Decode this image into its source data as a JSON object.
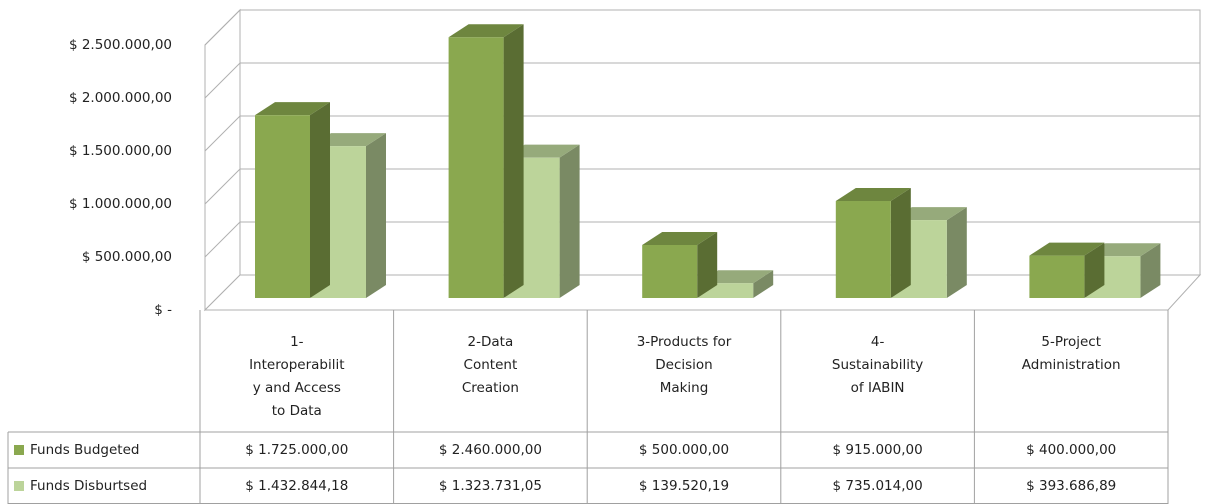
{
  "chart_data": {
    "type": "bar3d",
    "categories": [
      [
        "1-",
        "Interoperabilit",
        "y and Access",
        "to Data"
      ],
      [
        "2-Data",
        "Content",
        "Creation"
      ],
      [
        "3-Products for",
        "Decision",
        "Making"
      ],
      [
        "4-",
        "Sustainability",
        "of IABIN"
      ],
      [
        "5-Project",
        "Administration"
      ]
    ],
    "series": [
      {
        "name": "Funds Budgeted",
        "color": "#8aa84f",
        "values": [
          1725000,
          2460000,
          500000,
          915000,
          400000
        ],
        "value_labels": [
          "$ 1.725.000,00",
          "$ 2.460.000,00",
          "$ 500.000,00",
          "$ 915.000,00",
          "$ 400.000,00"
        ]
      },
      {
        "name": "Funds Disburtsed",
        "color": "#bcd49a",
        "values": [
          1432844.18,
          1323731.05,
          139520.19,
          735014.0,
          393686.89
        ],
        "value_labels": [
          "$ 1.432.844,18",
          "$ 1.323.731,05",
          "$ 139.520,19",
          "$ 735.014,00",
          "$ 393.686,89"
        ]
      }
    ],
    "ylim": [
      0,
      2500000
    ],
    "yticks": [
      {
        "value": 0,
        "label": "$ -"
      },
      {
        "value": 500000,
        "label": "$ 500.000,00"
      },
      {
        "value": 1000000,
        "label": "$ 1.000.000,00"
      },
      {
        "value": 1500000,
        "label": "$ 1.500.000,00"
      },
      {
        "value": 2000000,
        "label": "$ 2.000.000,00"
      },
      {
        "value": 2500000,
        "label": "$ 2.500.000,00"
      }
    ],
    "grid": true,
    "data_table": true
  }
}
